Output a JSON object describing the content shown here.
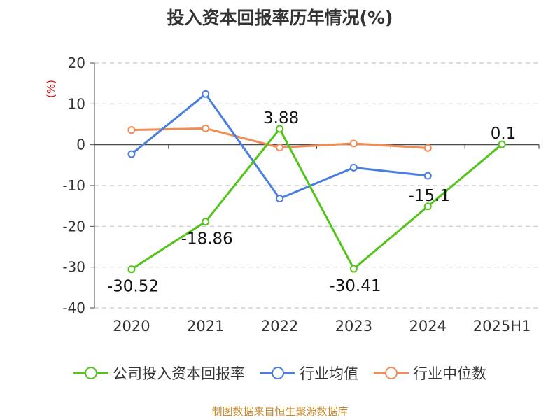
{
  "title": "投入资本回报率历年情况(%)",
  "source": "制图数据来自恒生聚源数据库",
  "chart_data": {
    "type": "line",
    "title": "投入资本回报率历年情况(%)",
    "ylabel": "(%)",
    "ylim": [
      -40,
      20
    ],
    "yticks": [
      20,
      10,
      0,
      -10,
      -20,
      -30,
      -40
    ],
    "categories": [
      "2020",
      "2021",
      "2022",
      "2023",
      "2024",
      "2025H1"
    ],
    "grid": true,
    "legend_position": "bottom",
    "series": [
      {
        "name": "公司投入资本回报率",
        "color": "#52c41a",
        "values": [
          -30.52,
          -18.86,
          3.88,
          -30.41,
          -15.1,
          0.1
        ],
        "labels": [
          "-30.52",
          "-18.86",
          "3.88",
          "-30.41",
          "-15.1",
          "0.1"
        ]
      },
      {
        "name": "行业均值",
        "color": "#4a7fe0",
        "values": [
          -2.3,
          12.4,
          -13.2,
          -5.6,
          -7.6,
          null
        ]
      },
      {
        "name": "行业中位数",
        "color": "#f08c54",
        "values": [
          3.6,
          4.0,
          -0.7,
          0.3,
          -0.8,
          null
        ]
      }
    ]
  }
}
